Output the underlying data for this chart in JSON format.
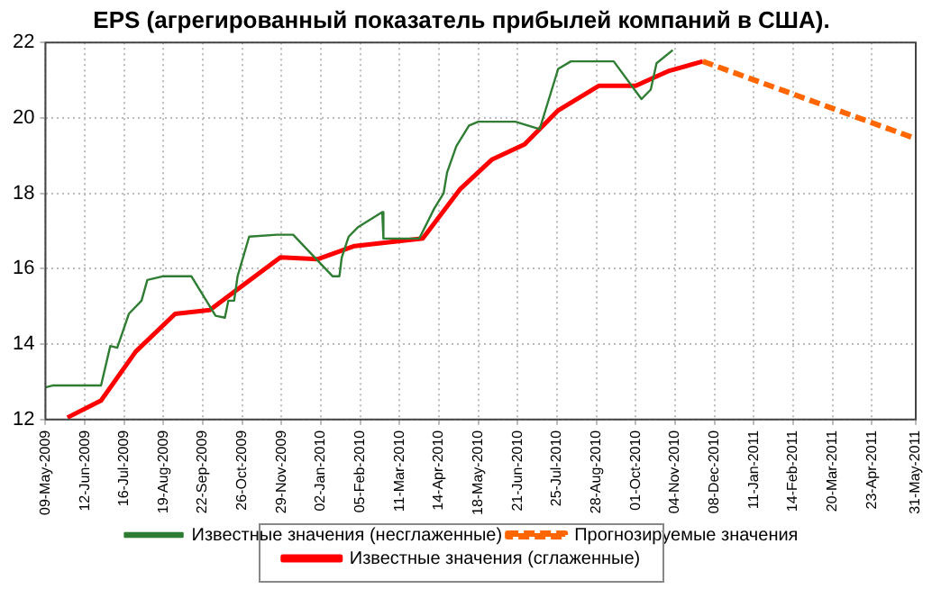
{
  "chart_data": {
    "type": "line",
    "title": "EPS (агрегированный показатель прибылей компаний в США).",
    "series": [
      {
        "name": "Известные значения (сглаженные)",
        "color": "#ff0000",
        "line_style": "solid",
        "x": [
          "2009-05-28",
          "2009-06-26",
          "2009-07-26",
          "2009-08-29",
          "2009-09-28",
          "2009-11-28",
          "2009-12-30",
          "2010-01-31",
          "2010-03-31",
          "2010-05-02",
          "2010-05-30",
          "2010-06-27",
          "2010-07-26",
          "2010-08-30",
          "2010-10-01",
          "2010-10-30",
          "2010-11-28"
        ],
        "values": [
          12.05,
          12.5,
          13.8,
          14.8,
          14.9,
          16.3,
          16.25,
          16.6,
          16.8,
          18.1,
          18.9,
          19.3,
          20.2,
          20.85,
          20.85,
          21.25,
          21.5
        ]
      },
      {
        "name": "Прогнозируемые значения",
        "color": "#ff6600",
        "line_style": "dashed",
        "x": [
          "2010-11-28",
          "2011-05-31"
        ],
        "values": [
          21.5,
          19.45
        ]
      },
      {
        "name": "Известные значения (несглаженные)",
        "color": "#2e7d32",
        "line_style": "solid",
        "x": [
          "2009-05-09",
          "2009-05-15",
          "2009-06-26",
          "2009-07-04",
          "2009-07-10",
          "2009-07-20",
          "2009-07-31",
          "2009-08-05",
          "2009-08-19",
          "2009-09-12",
          "2009-10-03",
          "2009-10-11",
          "2009-10-14",
          "2009-10-19",
          "2009-10-22",
          "2009-11-01",
          "2009-11-25",
          "2009-12-09",
          "2010-01-12",
          "2010-01-18",
          "2010-01-20",
          "2010-01-26",
          "2010-02-03",
          "2010-02-24",
          "2010-02-25",
          "2010-03-28",
          "2010-04-10",
          "2010-04-18",
          "2010-04-21",
          "2010-04-29",
          "2010-05-10",
          "2010-05-18",
          "2010-06-19",
          "2010-07-10",
          "2010-07-18",
          "2010-07-26",
          "2010-08-06",
          "2010-09-12",
          "2010-10-06",
          "2010-10-14",
          "2010-10-19",
          "2010-11-02"
        ],
        "values": [
          12.85,
          12.9,
          12.9,
          13.95,
          13.9,
          14.8,
          15.15,
          15.7,
          15.8,
          15.8,
          14.75,
          14.7,
          15.15,
          15.15,
          15.8,
          16.85,
          16.9,
          16.9,
          15.8,
          15.8,
          16.3,
          16.85,
          17.1,
          17.5,
          16.8,
          16.8,
          17.6,
          18.0,
          18.55,
          19.25,
          19.8,
          19.9,
          19.9,
          19.7,
          20.5,
          21.3,
          21.5,
          21.5,
          20.5,
          20.75,
          21.45,
          21.8
        ]
      }
    ],
    "xlim": [
      "2009-05-09",
      "2011-05-31"
    ],
    "xticks": [
      {
        "value": "2009-05-09",
        "label": "09-May-2009"
      },
      {
        "value": "2009-06-12",
        "label": "12-Jun-2009"
      },
      {
        "value": "2009-07-16",
        "label": "16-Jul-2009"
      },
      {
        "value": "2009-08-19",
        "label": "19-Aug-2009"
      },
      {
        "value": "2009-09-22",
        "label": "22-Sep-2009"
      },
      {
        "value": "2009-10-26",
        "label": "26-Oct-2009"
      },
      {
        "value": "2009-11-29",
        "label": "29-Nov-2009"
      },
      {
        "value": "2010-01-02",
        "label": "02-Jan-2010"
      },
      {
        "value": "2010-02-05",
        "label": "05-Feb-2010"
      },
      {
        "value": "2010-03-11",
        "label": "11-Mar-2010"
      },
      {
        "value": "2010-04-14",
        "label": "14-Apr-2010"
      },
      {
        "value": "2010-05-18",
        "label": "18-May-2010"
      },
      {
        "value": "2010-06-21",
        "label": "21-Jun-2010"
      },
      {
        "value": "2010-07-25",
        "label": "25-Jul-2010"
      },
      {
        "value": "2010-08-28",
        "label": "28-Aug-2010"
      },
      {
        "value": "2010-10-01",
        "label": "01-Oct-2010"
      },
      {
        "value": "2010-11-04",
        "label": "04-Nov-2010"
      },
      {
        "value": "2010-12-08",
        "label": "08-Dec-2010"
      },
      {
        "value": "2011-01-11",
        "label": "11-Jan-2011"
      },
      {
        "value": "2011-02-14",
        "label": "14-Feb-2011"
      },
      {
        "value": "2011-03-20",
        "label": "20-Mar-2011"
      },
      {
        "value": "2011-04-23",
        "label": "23-Apr-2011"
      },
      {
        "value": "2011-05-31",
        "label": "31-May-2011"
      }
    ],
    "ylim": [
      12,
      22
    ],
    "yticks": [
      12,
      14,
      16,
      18,
      20,
      22
    ],
    "grid": true,
    "legend": "bottom",
    "marker": "none"
  }
}
